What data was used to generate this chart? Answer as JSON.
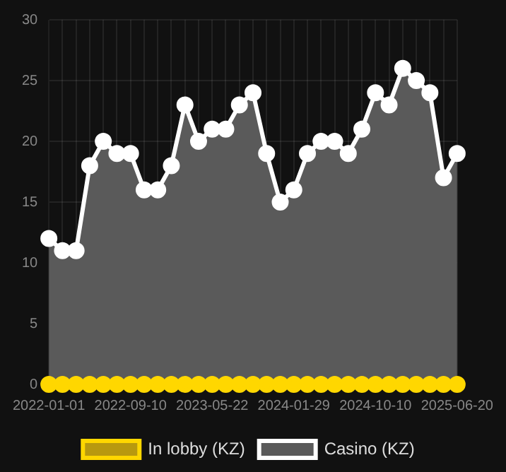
{
  "chart_data": {
    "type": "area",
    "categories": [
      "2022-01-01",
      null,
      null,
      null,
      null,
      null,
      "2022-09-10",
      null,
      null,
      null,
      null,
      null,
      "2023-05-22",
      null,
      null,
      null,
      null,
      null,
      "2024-01-29",
      null,
      null,
      null,
      null,
      null,
      "2024-10-10",
      null,
      null,
      null,
      null,
      null,
      "2025-06-20"
    ],
    "series": [
      {
        "name": "In lobby (KZ)",
        "color": "#ffd700",
        "type": "line",
        "values": [
          0,
          0,
          0,
          0,
          0,
          0,
          0,
          0,
          0,
          0,
          0,
          0,
          0,
          0,
          0,
          0,
          0,
          0,
          0,
          0,
          0,
          0,
          0,
          0,
          0,
          0,
          0,
          0,
          0,
          0,
          0
        ]
      },
      {
        "name": "Casino (KZ)",
        "color": "#ffffff",
        "values": [
          12,
          11,
          11,
          18,
          20,
          19,
          19,
          16,
          16,
          18,
          23,
          20,
          21,
          21,
          23,
          24,
          19,
          15,
          16,
          19,
          20,
          20,
          19,
          21,
          24,
          23,
          26,
          25,
          24,
          17,
          19
        ]
      }
    ],
    "ylim": [
      0,
      30
    ],
    "yticks": [
      0,
      5,
      10,
      15,
      20,
      25,
      30
    ],
    "grid": true,
    "legend": "bottom",
    "marker": "circle"
  }
}
